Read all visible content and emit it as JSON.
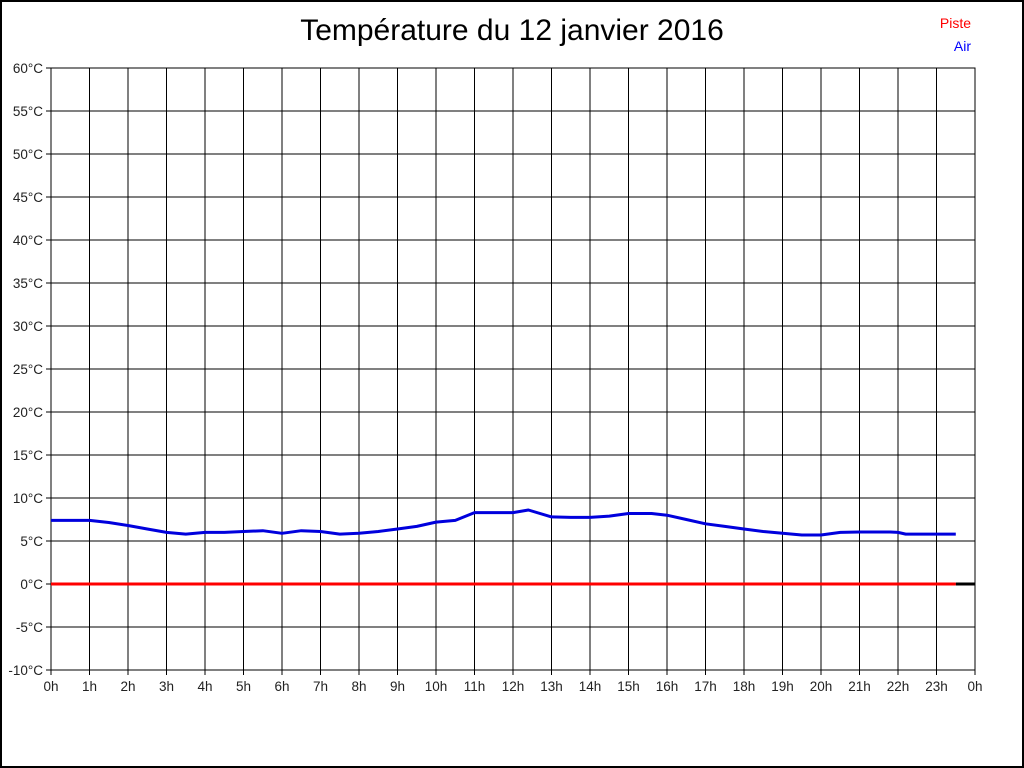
{
  "chart_data": {
    "type": "line",
    "title": "Température du 12 janvier 2016",
    "x_axis": {
      "min": 0,
      "max": 24,
      "tick_step": 1,
      "tick_labels": [
        "0h",
        "1h",
        "2h",
        "3h",
        "4h",
        "5h",
        "6h",
        "7h",
        "8h",
        "9h",
        "10h",
        "11h",
        "12h",
        "13h",
        "14h",
        "15h",
        "16h",
        "17h",
        "18h",
        "19h",
        "20h",
        "21h",
        "22h",
        "23h",
        "0h"
      ]
    },
    "y_axis": {
      "min": -10,
      "max": 60,
      "tick_step": 5,
      "unit": "°C",
      "tick_labels": [
        "60°C",
        "55°C",
        "50°C",
        "45°C",
        "40°C",
        "35°C",
        "30°C",
        "25°C",
        "20°C",
        "15°C",
        "10°C",
        "5°C",
        "0°C",
        "-5°C",
        "-10°C"
      ]
    },
    "grid": true,
    "legend": {
      "position": "top-right",
      "entries": [
        {
          "name": "Piste",
          "color": "#ff0000"
        },
        {
          "name": "Air",
          "color": "#0000ff"
        }
      ]
    },
    "series": [
      {
        "name": "Piste",
        "color": "#ff0000",
        "points": [
          [
            0,
            0
          ],
          [
            23.5,
            0
          ]
        ]
      },
      {
        "name": "Air",
        "color": "#0000dd",
        "points": [
          [
            0,
            7.4
          ],
          [
            1,
            7.4
          ],
          [
            1.5,
            7.15
          ],
          [
            2,
            6.8
          ],
          [
            2.5,
            6.4
          ],
          [
            3,
            6.0
          ],
          [
            3.5,
            5.8
          ],
          [
            4,
            6.0
          ],
          [
            4.5,
            6.0
          ],
          [
            5,
            6.1
          ],
          [
            5.5,
            6.2
          ],
          [
            6,
            5.9
          ],
          [
            6.5,
            6.2
          ],
          [
            7,
            6.1
          ],
          [
            7.5,
            5.8
          ],
          [
            8,
            5.9
          ],
          [
            8.5,
            6.1
          ],
          [
            9,
            6.4
          ],
          [
            9.5,
            6.7
          ],
          [
            10,
            7.2
          ],
          [
            10.5,
            7.4
          ],
          [
            11,
            8.3
          ],
          [
            12,
            8.3
          ],
          [
            12.4,
            8.6
          ],
          [
            13,
            7.8
          ],
          [
            13.5,
            7.75
          ],
          [
            14,
            7.75
          ],
          [
            14.5,
            7.9
          ],
          [
            15,
            8.2
          ],
          [
            15.6,
            8.2
          ],
          [
            16,
            8.0
          ],
          [
            16.5,
            7.5
          ],
          [
            17,
            7.0
          ],
          [
            17.5,
            6.7
          ],
          [
            18,
            6.4
          ],
          [
            18.5,
            6.1
          ],
          [
            19,
            5.9
          ],
          [
            19.5,
            5.7
          ],
          [
            20,
            5.7
          ],
          [
            20.5,
            6.0
          ],
          [
            21,
            6.05
          ],
          [
            21.8,
            6.05
          ],
          [
            22,
            6.0
          ],
          [
            22.2,
            5.8
          ],
          [
            23,
            5.8
          ],
          [
            23.5,
            5.8
          ]
        ]
      }
    ],
    "extra_segments": [
      {
        "color": "#000000",
        "points": [
          [
            23.5,
            0
          ],
          [
            24,
            0
          ]
        ]
      }
    ]
  }
}
